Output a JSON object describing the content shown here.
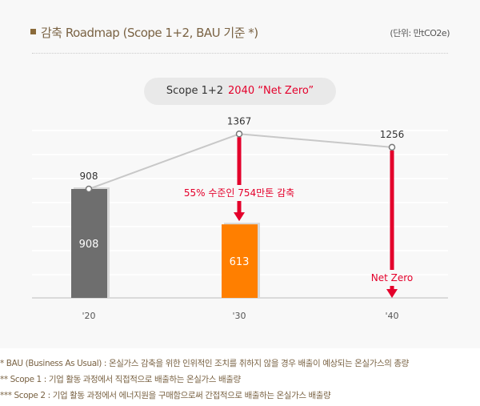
{
  "header": {
    "title": "감축 Roadmap (Scope 1+2, BAU 기준 *)",
    "unit": "(단위: 만tCO2e)"
  },
  "banner": {
    "prefix": "Scope 1+2",
    "highlight": "2040 “Net Zero”"
  },
  "chart_data": {
    "type": "bar",
    "categories": [
      "'20",
      "'30",
      "'40"
    ],
    "bars": [
      {
        "category": "'20",
        "value": 908,
        "color": "#6e6e6e"
      },
      {
        "category": "'30",
        "value": 613,
        "color": "#ff7f00"
      }
    ],
    "bau_line": {
      "name": "BAU",
      "values": [
        908,
        1367,
        1256
      ],
      "labels": [
        "908",
        "1367",
        "1256"
      ]
    },
    "bar_labels": [
      "908",
      "613"
    ],
    "annotations": [
      {
        "category": "'30",
        "text": "55% 수준인 754만톤 감축",
        "from": 1367,
        "to": 613
      },
      {
        "category": "'40",
        "text": "Net Zero",
        "from": 1256,
        "to": 0
      }
    ],
    "ylim": [
      0,
      1450
    ],
    "grid": true,
    "accent": "#e4002b"
  },
  "notes": [
    "* BAU (Business As Usual) : 온실가스 감축을 위한 인위적인 조치를 취하지 않을 경우 배출이 예상되는 온실가스의 총량",
    "**   Scope 1 : 기업 활동 과정에서 직접적으로 배출하는 온실가스 배출량",
    "*** Scope 2 : 기업 활동 과정에서 에너지원을 구매함으로써 간접적으로 배출하는 온실가스 배출량"
  ]
}
